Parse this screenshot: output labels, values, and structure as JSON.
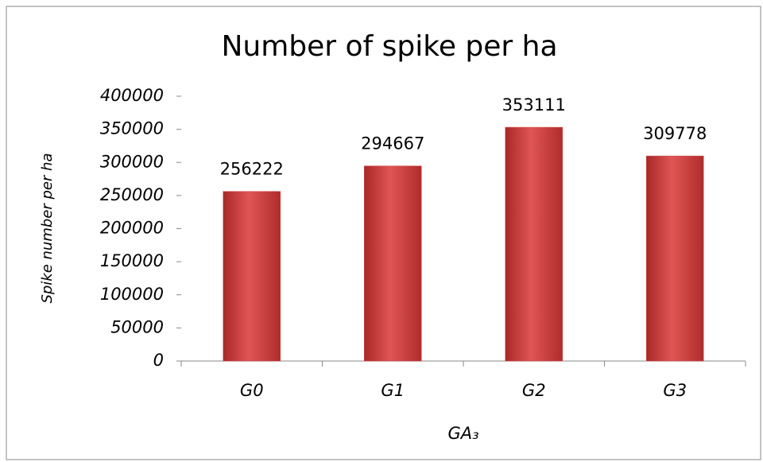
{
  "chart_data": {
    "type": "bar",
    "title": "Number of spike per ha",
    "x_label": "GA₃",
    "y_label": "Spike number per ha",
    "categories": [
      "G0",
      "G1",
      "G2",
      "G3"
    ],
    "values": [
      256222,
      294667,
      353111,
      309778
    ],
    "color": "#d24545",
    "ylim": [
      0,
      400000
    ],
    "yticks": [
      0,
      50000,
      100000,
      150000,
      200000,
      250000,
      300000,
      350000,
      400000
    ],
    "grid": false
  }
}
